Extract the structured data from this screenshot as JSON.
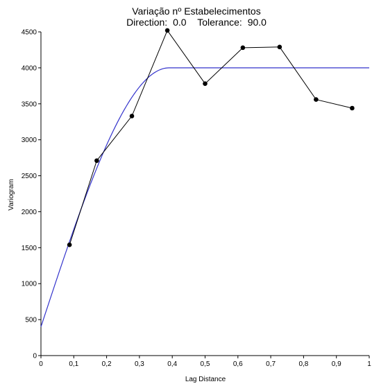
{
  "chart_data": {
    "type": "line",
    "title": "Variação nº Estabelecimentos",
    "subtitle_direction_label": "Direction:",
    "subtitle_direction_value": "0.0",
    "subtitle_tolerance_label": "Tolerance:",
    "subtitle_tolerance_value": "90.0",
    "xlabel": "Lag Distance",
    "ylabel": "Variogram",
    "xlim": [
      0,
      1
    ],
    "ylim": [
      0,
      4500
    ],
    "xticks": [
      0,
      0.1,
      0.2,
      0.3,
      0.4,
      0.5,
      0.6,
      0.7,
      0.8,
      0.9,
      1
    ],
    "xtick_labels": [
      "0",
      "0,1",
      "0,2",
      "0,3",
      "0,4",
      "0,5",
      "0,6",
      "0,7",
      "0,8",
      "0,9",
      "1"
    ],
    "yticks": [
      0,
      500,
      1000,
      1500,
      2000,
      2500,
      3000,
      3500,
      4000,
      4500
    ],
    "ytick_labels": [
      "0",
      "500",
      "1000",
      "1500",
      "2000",
      "2500",
      "3000",
      "3500",
      "4000",
      "4500"
    ],
    "grid": false,
    "series": [
      {
        "kind": "experimental",
        "color": "#000000",
        "x": [
          0.087,
          0.17,
          0.277,
          0.385,
          0.5,
          0.615,
          0.727,
          0.838,
          0.948
        ],
        "y": [
          1540,
          2710,
          3330,
          4520,
          3780,
          4280,
          4290,
          3560,
          3440
        ]
      },
      {
        "kind": "model",
        "color": "#3333cc",
        "model": "spherical",
        "nugget": 400,
        "sill": 4000,
        "range": 0.39
      }
    ]
  }
}
